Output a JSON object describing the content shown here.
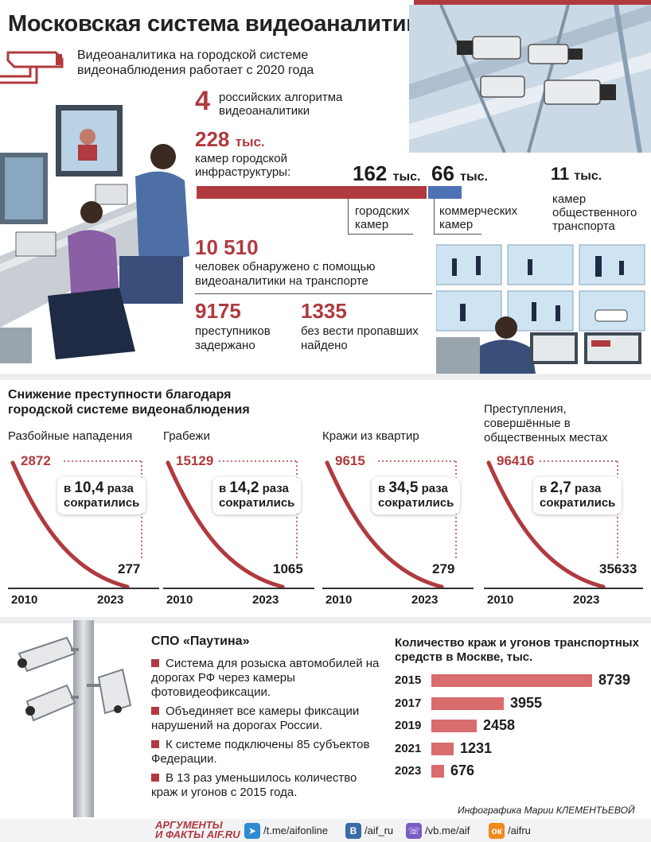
{
  "title": "Московская система видеоаналитики",
  "since_text": "Видеоаналитика на городской системе видеонаблюдения работает с 2020 года",
  "algorithms": {
    "value": "4",
    "label": "российских алгоритма видеоаналитики"
  },
  "cameras": {
    "total_value": "228",
    "total_unit": "тыс.",
    "total_label": "камер городской инфраструктуры:",
    "city_value": "162",
    "city_unit": "тыс.",
    "city_label": "городских камер",
    "commercial_value": "66",
    "commercial_unit": "тыс.",
    "commercial_label": "коммерческих камер",
    "transport_value": "11",
    "transport_unit": "тыс.",
    "transport_label": "камер общественного транспорта"
  },
  "detected": {
    "value": "10 510",
    "label": "человек обнаружено с помощью видеоаналитики на транспорте"
  },
  "criminals": {
    "value": "9175",
    "label": "преступников задержано"
  },
  "missing": {
    "value": "1335",
    "label": "без вести пропавших найдено"
  },
  "crime_section": {
    "title": "Снижение преступности благодаря городской системе видеонаблюдения",
    "reduced_word": "сократились",
    "times_word": "раза",
    "prefix": "в",
    "year_start": "2010",
    "year_end": "2023"
  },
  "chart_data": [
    {
      "type": "line",
      "title": "Разбойные нападения",
      "x": [
        "2010",
        "2023"
      ],
      "values": [
        2872,
        277
      ],
      "ratio": "10,4"
    },
    {
      "type": "line",
      "title": "Грабежи",
      "x": [
        "2010",
        "2023"
      ],
      "values": [
        15129,
        1065
      ],
      "ratio": "14,2"
    },
    {
      "type": "line",
      "title": "Кражи из квартир",
      "x": [
        "2010",
        "2023"
      ],
      "values": [
        9615,
        279
      ],
      "ratio": "34,5"
    },
    {
      "type": "line",
      "title": "Преступления, совершённые в общественных местах",
      "x": [
        "2010",
        "2023"
      ],
      "values": [
        96416,
        35633
      ],
      "ratio": "2,7"
    },
    {
      "type": "bar",
      "title": "Количество краж и угонов транспортных средств в Москве, тыс.",
      "categories": [
        "2015",
        "2017",
        "2019",
        "2021",
        "2023"
      ],
      "values": [
        8739,
        3955,
        2458,
        1231,
        676
      ]
    }
  ],
  "spo": {
    "title": "СПО «Паутина»",
    "bullets": [
      "Система для розыска автомобилей на дорогах РФ через камеры фотовидеофиксации.",
      "Объединяет все камеры фиксации нарушений на дорогах России.",
      "К системе подключены 85 субъектов Федерации.",
      "В 13 раз уменьшилось количество краж и угонов с 2015 года."
    ]
  },
  "credit": "Инфографика  Марии КЛЕМЕНТЬЕВОЙ",
  "footer": {
    "logo_top": "АРГУМЕНТЫ",
    "logo_bottom": "И ФАКТЫ AIF.RU",
    "links": [
      "/t.me/aifonline",
      "/aif_ru",
      "/vb.me/aif",
      "/aifru"
    ]
  },
  "colors": {
    "accent": "#b03a3f",
    "commercial": "#4e72b5",
    "bar": "#d96c6c"
  }
}
